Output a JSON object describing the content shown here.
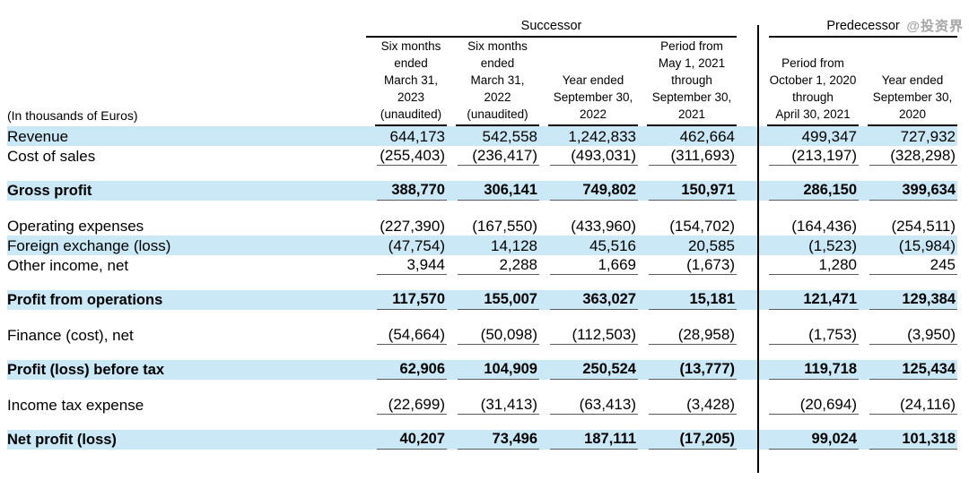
{
  "watermark": "@投资界",
  "unit_label": "(In thousands of Euros)",
  "groups": [
    {
      "label": "Successor",
      "span": 4
    },
    {
      "label": "Predecessor",
      "span": 2
    }
  ],
  "columns": [
    {
      "lines": [
        "Six months",
        "ended",
        "March 31,",
        "2023",
        "(unaudited)"
      ]
    },
    {
      "lines": [
        "Six months",
        "ended",
        "March 31,",
        "2022",
        "(unaudited)"
      ]
    },
    {
      "lines": [
        "Year ended",
        "September 30,",
        "2022"
      ]
    },
    {
      "lines": [
        "Period from",
        "May 1, 2021",
        "through",
        "September 30,",
        "2021"
      ]
    },
    {
      "lines": [
        "Period from",
        "October 1, 2020",
        "through",
        "April 30, 2021"
      ]
    },
    {
      "lines": [
        "Year ended",
        "September 30,",
        "2020"
      ]
    }
  ],
  "rows": [
    {
      "label": "Revenue",
      "values": [
        "644,173",
        "542,558",
        "1,242,833",
        "462,664",
        "499,347",
        "727,932"
      ],
      "shaded": true,
      "emphasis": false,
      "rule_below": false,
      "spacer_before": false
    },
    {
      "label": "Cost of sales",
      "values": [
        "(255,403)",
        "(236,417)",
        "(493,031)",
        "(311,693)",
        "(213,197)",
        "(328,298)"
      ],
      "shaded": false,
      "emphasis": false,
      "rule_below": true,
      "spacer_before": false
    },
    {
      "label": "Gross profit",
      "values": [
        "388,770",
        "306,141",
        "749,802",
        "150,971",
        "286,150",
        "399,634"
      ],
      "shaded": true,
      "emphasis": true,
      "rule_below": true,
      "spacer_before": true
    },
    {
      "label": "Operating expenses",
      "values": [
        "(227,390)",
        "(167,550)",
        "(433,960)",
        "(154,702)",
        "(164,436)",
        "(254,511)"
      ],
      "shaded": false,
      "emphasis": false,
      "rule_below": false,
      "spacer_before": true
    },
    {
      "label": "Foreign exchange (loss)",
      "values": [
        "(47,754)",
        "14,128",
        "45,516",
        "20,585",
        "(1,523)",
        "(15,984)"
      ],
      "shaded": true,
      "emphasis": false,
      "rule_below": false,
      "spacer_before": false
    },
    {
      "label": "Other income, net",
      "values": [
        "3,944",
        "2,288",
        "1,669",
        "(1,673)",
        "1,280",
        "245"
      ],
      "shaded": false,
      "emphasis": false,
      "rule_below": true,
      "spacer_before": false
    },
    {
      "label": "Profit from operations",
      "values": [
        "117,570",
        "155,007",
        "363,027",
        "15,181",
        "121,471",
        "129,384"
      ],
      "shaded": true,
      "emphasis": true,
      "rule_below": true,
      "spacer_before": true
    },
    {
      "label": "Finance (cost), net",
      "values": [
        "(54,664)",
        "(50,098)",
        "(112,503)",
        "(28,958)",
        "(1,753)",
        "(3,950)"
      ],
      "shaded": false,
      "emphasis": false,
      "rule_below": true,
      "spacer_before": true
    },
    {
      "label": "Profit (loss) before tax",
      "values": [
        "62,906",
        "104,909",
        "250,524",
        "(13,777)",
        "119,718",
        "125,434"
      ],
      "shaded": true,
      "emphasis": true,
      "rule_below": true,
      "spacer_before": true
    },
    {
      "label": "Income tax expense",
      "values": [
        "(22,699)",
        "(31,413)",
        "(63,413)",
        "(3,428)",
        "(20,694)",
        "(24,116)"
      ],
      "shaded": false,
      "emphasis": false,
      "rule_below": true,
      "spacer_before": true
    },
    {
      "label": "Net profit (loss)",
      "values": [
        "40,207",
        "73,496",
        "187,111",
        "(17,205)",
        "99,024",
        "101,318"
      ],
      "shaded": true,
      "emphasis": true,
      "rule_below": true,
      "spacer_before": true
    }
  ],
  "colors": {
    "row_highlight": "#cbe8f7",
    "rule_line": "#5a5a5a",
    "header_line": "#000000",
    "watermark_color": "#a6a6a6"
  }
}
